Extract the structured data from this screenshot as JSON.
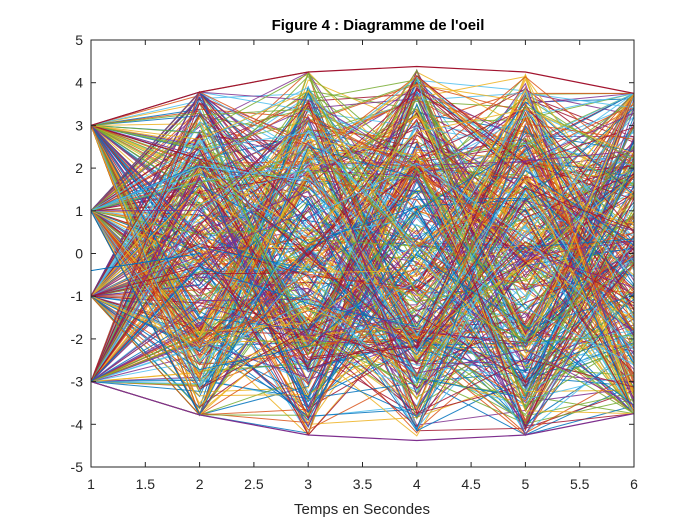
{
  "chart_data": {
    "type": "line",
    "title": "Figure 4 : Diagramme de l'oeil",
    "xlabel": "Temps en Secondes",
    "ylabel": "",
    "xlim": [
      1,
      6
    ],
    "ylim": [
      -5,
      5
    ],
    "xticks": [
      "1",
      "1.5",
      "2",
      "2.5",
      "3",
      "3.5",
      "4",
      "4.5",
      "5",
      "5.5",
      "6"
    ],
    "yticks": [
      "5",
      "4",
      "3",
      "2",
      "1",
      "0",
      "-1",
      "-2",
      "-3",
      "-4",
      "-5"
    ],
    "grid": false,
    "legend": "none",
    "x": [
      1,
      2,
      3,
      4,
      5,
      6
    ],
    "symbol_levels": [
      -3,
      -1,
      1,
      3
    ],
    "envelope_upper": [
      3,
      3.78,
      4.25,
      4.38,
      4.25,
      3.75
    ],
    "envelope_lower": [
      -3,
      -3.78,
      -4.25,
      -4.38,
      -4.25,
      -3.75
    ],
    "stray_trace": {
      "x": [
        1,
        2
      ],
      "y": [
        -0.4,
        0
      ]
    },
    "series_colors": [
      "#0072BD",
      "#D95319",
      "#EDB120",
      "#7E2F8E",
      "#77AC30",
      "#4DBEEE",
      "#A2142F"
    ]
  }
}
